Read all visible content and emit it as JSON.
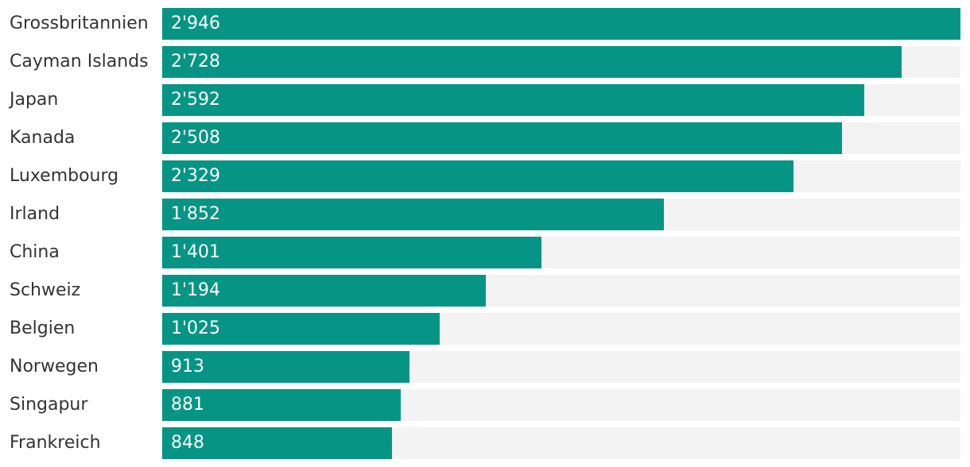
{
  "chart_data": {
    "type": "bar",
    "orientation": "horizontal",
    "title": "",
    "xlabel": "",
    "ylabel": "",
    "xlim": [
      0,
      2946
    ],
    "grid": false,
    "legend": "none",
    "colors": {
      "bar": "#069584",
      "track": "#f3f3f3",
      "label": "#333333",
      "value_label": "#ffffff"
    },
    "categories": [
      "Grossbritannien",
      "Cayman Islands",
      "Japan",
      "Kanada",
      "Luxembourg",
      "Irland",
      "China",
      "Schweiz",
      "Belgien",
      "Norwegen",
      "Singapur",
      "Frankreich"
    ],
    "values": [
      2946,
      2728,
      2592,
      2508,
      2329,
      1852,
      1401,
      1194,
      1025,
      913,
      881,
      848
    ],
    "value_labels": [
      "2'946",
      "2'728",
      "2'592",
      "2'508",
      "2'329",
      "1'852",
      "1'401",
      "1'194",
      "1'025",
      "913",
      "881",
      "848"
    ]
  }
}
